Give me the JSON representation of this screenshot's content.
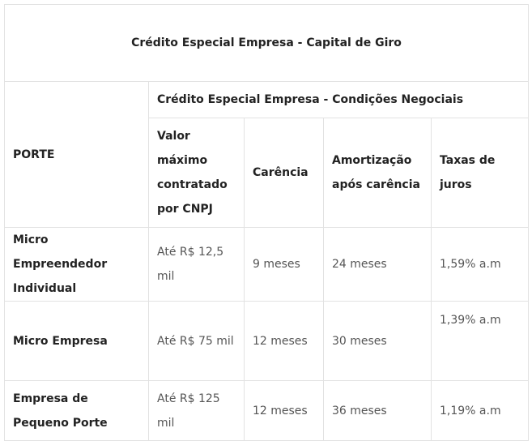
{
  "table": {
    "title": "Crédito Especial Empresa - Capital de Giro",
    "porte_header": "PORTE",
    "group_header": "Crédito Especial Empresa - Condições Negociais",
    "columns": [
      "Valor máximo contratado por CNPJ",
      "Carência",
      "Amortização após carência",
      "Taxas de juros"
    ],
    "rows": [
      [
        "Micro Empreendedor Individual",
        "Até R$ 12,5 mil",
        "9 meses",
        "24 meses",
        "1,59% a.m"
      ],
      [
        "Micro Empresa",
        "Até R$ 75 mil",
        "12 meses",
        "30 meses",
        "1,39% a.m"
      ],
      [
        "Empresa de Pequeno Porte",
        "Até R$ 125 mil",
        "12 meses",
        "36 meses",
        "1,19% a.m"
      ]
    ]
  }
}
